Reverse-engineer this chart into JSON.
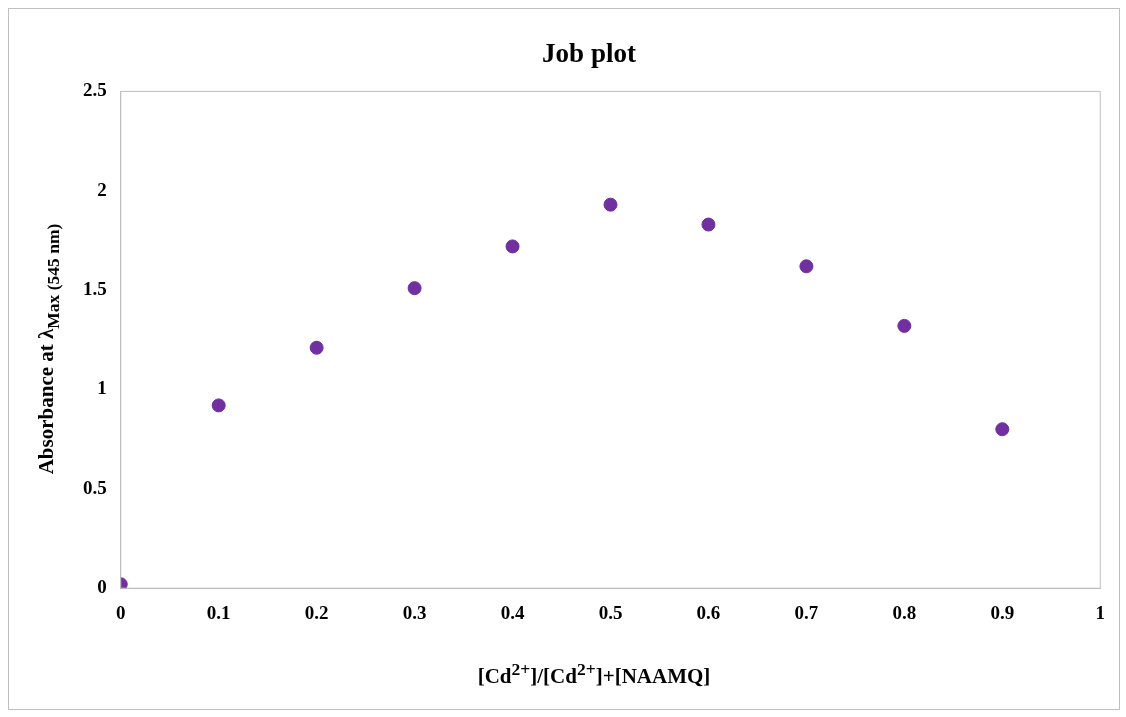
{
  "chart_data": {
    "type": "scatter",
    "title": "Job plot",
    "xlabel": "[Cd$^{2+}$]/[Cd$^{2+}$]+[NAAMQ]",
    "ylabel": "Absorbance at λ$_{Max (545 nm)}$",
    "x": [
      0,
      0.1,
      0.2,
      0.3,
      0.4,
      0.5,
      0.6,
      0.7,
      0.8,
      0.9
    ],
    "series": [
      {
        "color": "#7030a0",
        "values": [
          0.02,
          0.92,
          1.21,
          1.51,
          1.72,
          1.93,
          1.83,
          1.62,
          1.32,
          0.8
        ]
      }
    ],
    "xlim": [
      0,
      1
    ],
    "xticks": [
      0,
      0.1,
      0.2,
      0.3,
      0.4,
      0.5,
      0.6,
      0.7,
      0.8,
      0.9,
      1
    ],
    "ylim": [
      0,
      2.5
    ],
    "yticks": [
      0,
      0.5,
      1,
      1.5,
      2,
      2.5
    ],
    "grid": false,
    "legend": false,
    "marker": "circle"
  }
}
